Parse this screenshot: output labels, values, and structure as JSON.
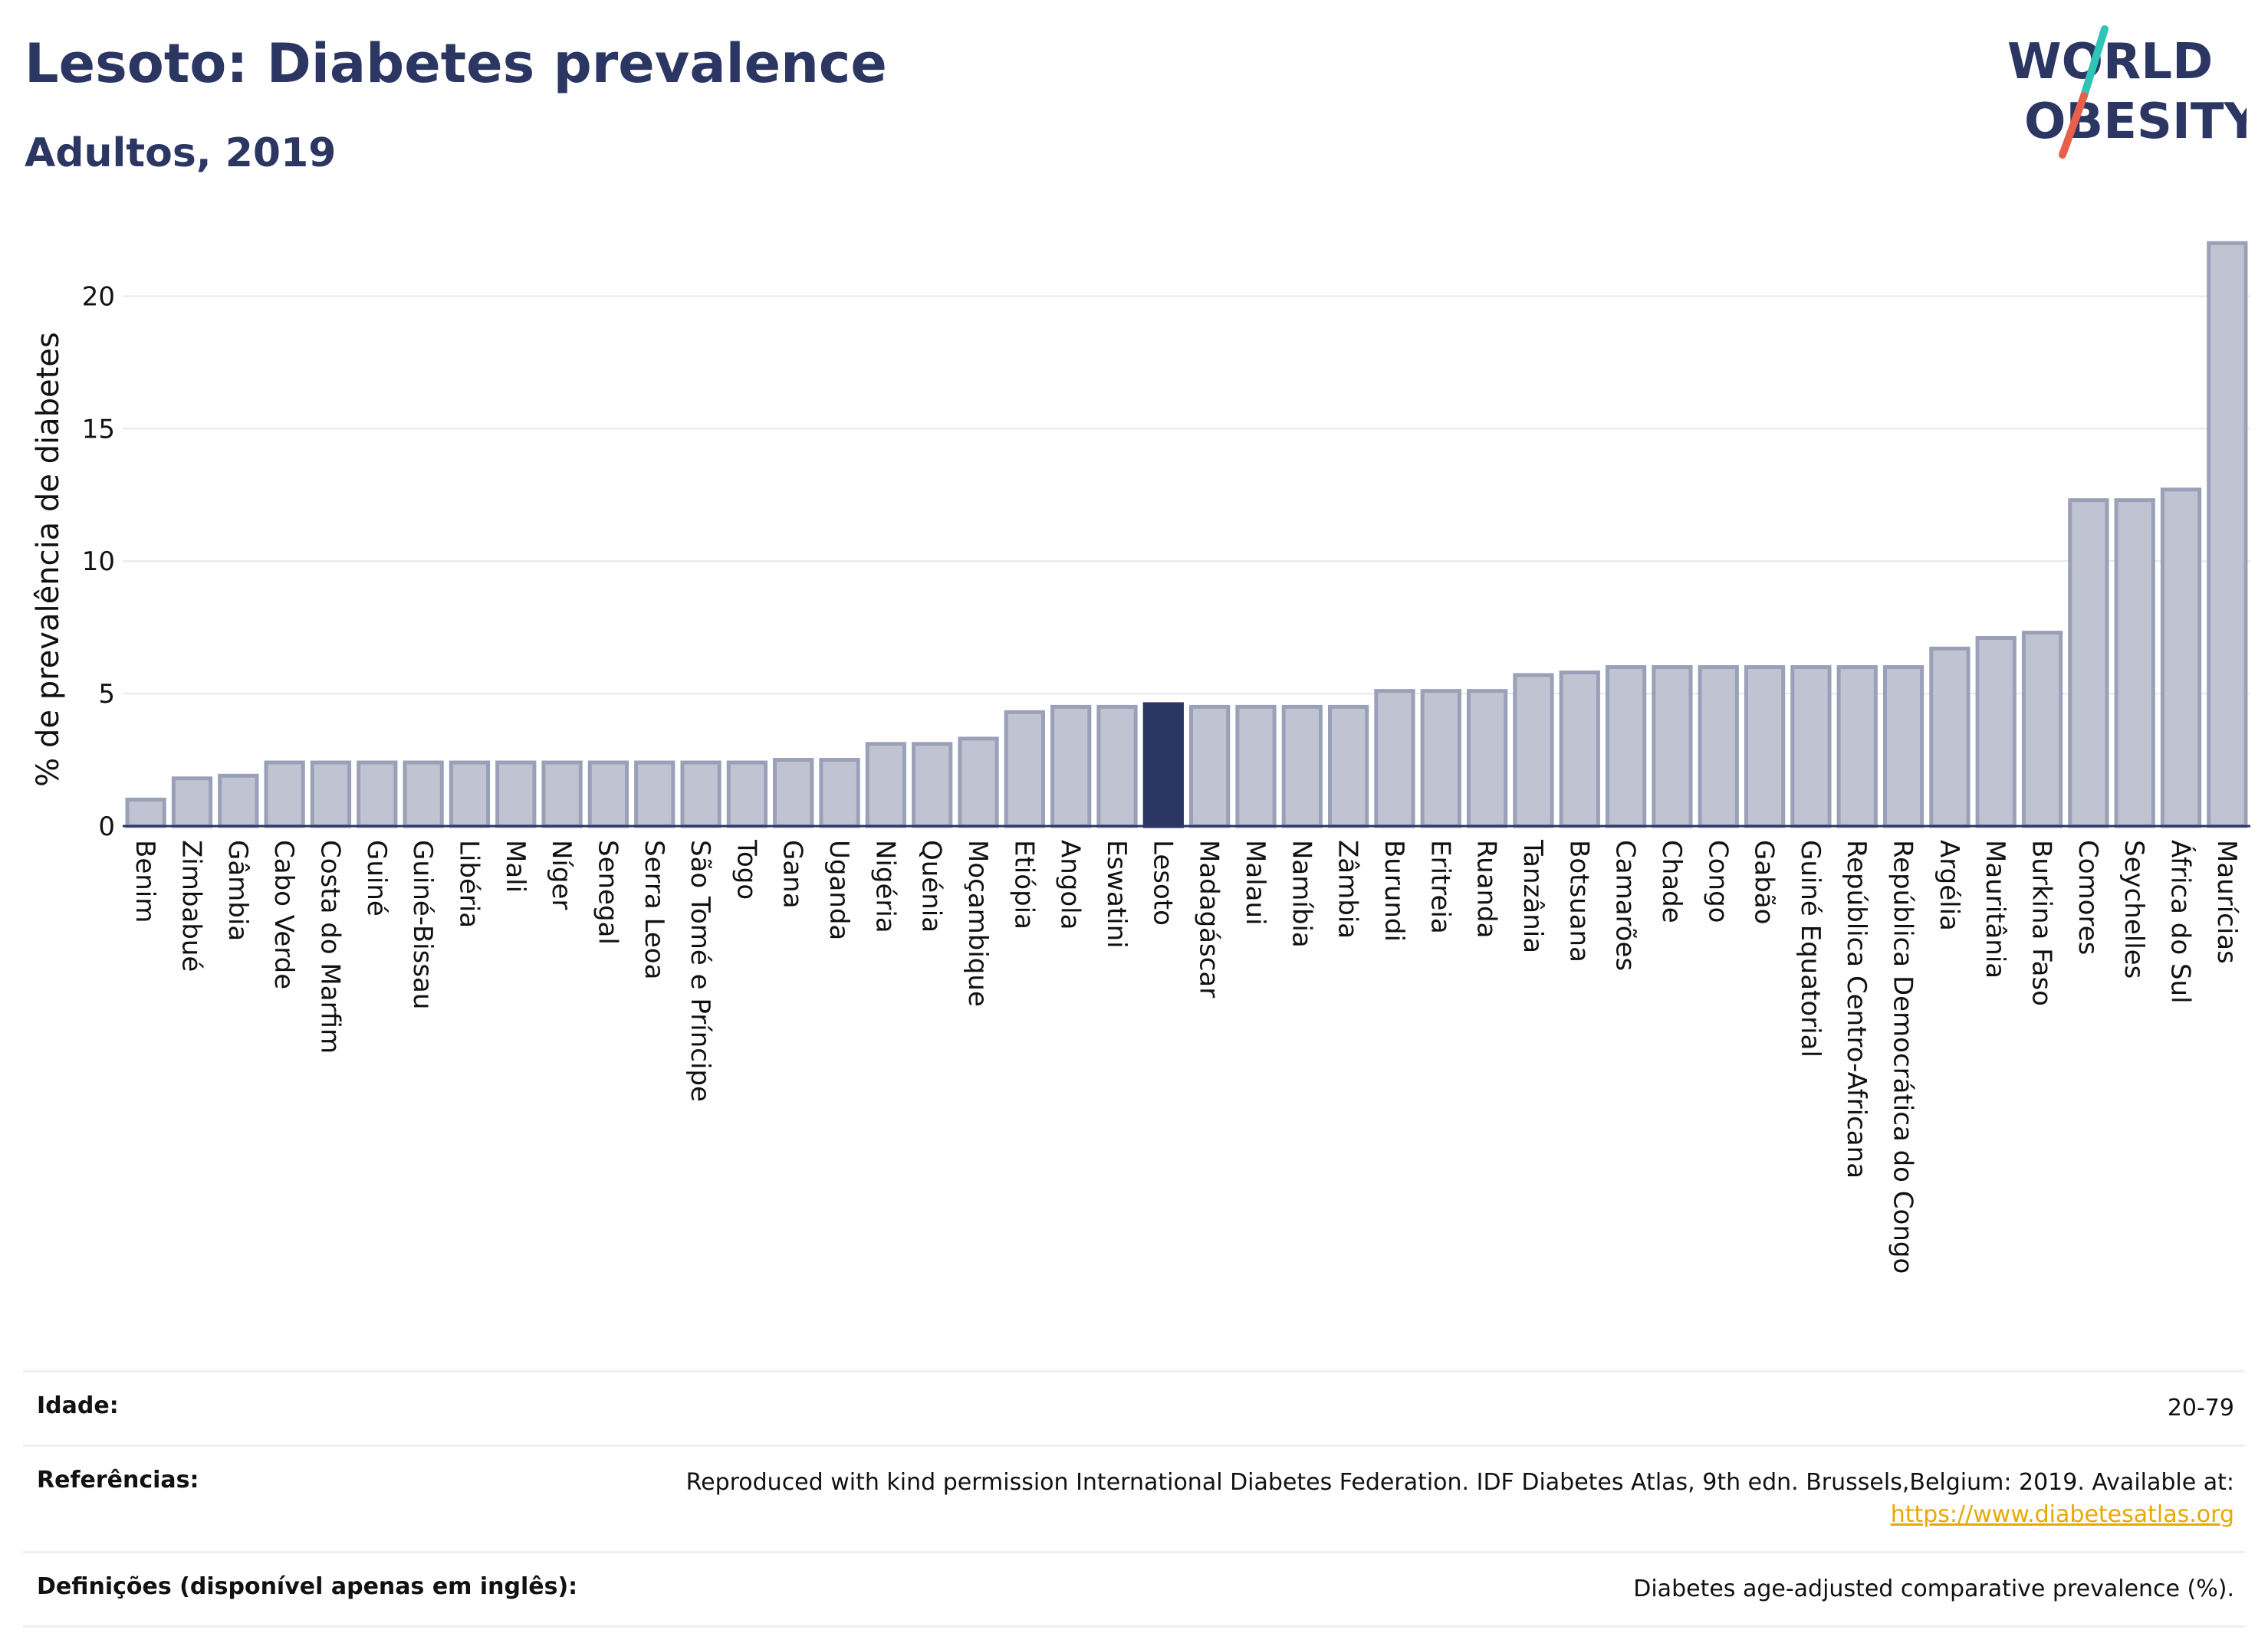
{
  "header": {
    "title": "Lesoto: Diabetes prevalence",
    "subtitle": "Adultos, 2019"
  },
  "logo": {
    "line1": "WORLD",
    "line2": "OBESITY",
    "colors": {
      "text": "#2b3663",
      "slash_top": "#2ec4b6",
      "slash_bottom": "#e8604c"
    }
  },
  "colors": {
    "bar": "#c0c4d2",
    "bar_border": "#9aa0b8",
    "highlight": "#2b3663",
    "grid": "#e6e8ef",
    "axis": "#2b3663"
  },
  "chart_data": {
    "type": "bar",
    "ylabel": "% de prevalência de diabetes",
    "xlabel": "",
    "ylim": [
      0,
      22.5
    ],
    "yticks": [
      0,
      5,
      10,
      15,
      20
    ],
    "grid": true,
    "highlight": "Lesoto",
    "categories": [
      "Benim",
      "Zimbabué",
      "Gâmbia",
      "Cabo Verde",
      "Costa do Marfim",
      "Guiné",
      "Guiné-Bissau",
      "Libéria",
      "Mali",
      "Níger",
      "Senegal",
      "Serra Leoa",
      "São Tomé e Príncipe",
      "Togo",
      "Gana",
      "Uganda",
      "Nigéria",
      "Quénia",
      "Moçambique",
      "Etiópia",
      "Angola",
      "Eswatini",
      "Lesoto",
      "Madagáscar",
      "Malaui",
      "Namíbia",
      "Zâmbia",
      "Burundi",
      "Eritreia",
      "Ruanda",
      "Tanzânia",
      "Botsuana",
      "Camarões",
      "Chade",
      "Congo",
      "Gabão",
      "Guiné Equatorial",
      "República Centro-Africana",
      "República Democrática do Congo",
      "Argélia",
      "Mauritânia",
      "Burkina Faso",
      "Comores",
      "Seychelles",
      "África do Sul",
      "Maurícias"
    ],
    "values": [
      1.0,
      1.8,
      1.9,
      2.4,
      2.4,
      2.4,
      2.4,
      2.4,
      2.4,
      2.4,
      2.4,
      2.4,
      2.4,
      2.4,
      2.5,
      2.5,
      3.1,
      3.1,
      3.3,
      4.3,
      4.5,
      4.5,
      4.6,
      4.5,
      4.5,
      4.5,
      4.5,
      5.1,
      5.1,
      5.1,
      5.7,
      5.8,
      6.0,
      6.0,
      6.0,
      6.0,
      6.0,
      6.0,
      6.0,
      6.7,
      7.1,
      7.3,
      12.3,
      12.3,
      12.7,
      22.0
    ]
  },
  "info": {
    "rows": [
      {
        "label": "Idade:",
        "value": "20-79"
      },
      {
        "label": "Referências:",
        "value": "Reproduced with kind permission International Diabetes Federation. IDF Diabetes Atlas, 9th edn. Brussels,Belgium: 2019. Available at:",
        "link": "https://www.diabetesatlas.org"
      },
      {
        "label": "Definições (disponível apenas em inglês):",
        "value": "Diabetes age-adjusted comparative prevalence (%)."
      }
    ]
  }
}
